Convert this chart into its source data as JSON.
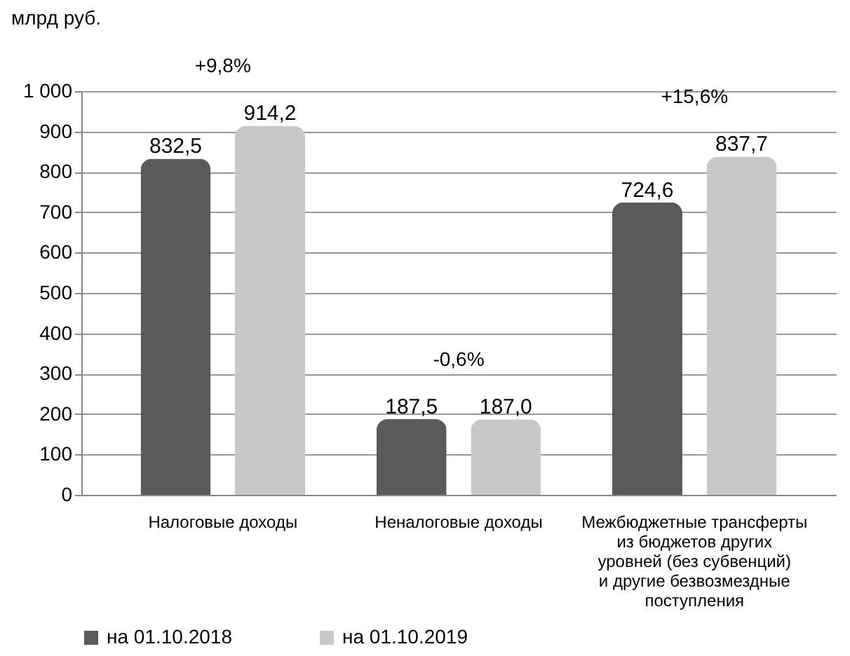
{
  "chart_data": {
    "type": "bar",
    "ylabel": "млрд руб.",
    "categories": [
      "Налоговые доходы",
      "Неналоговые доходы",
      "Межбюджетные трансферты из бюджетов других уровней (без субвенций) и другие безвозмездные поступления"
    ],
    "series": [
      {
        "name": "на 01.10.2018",
        "color": "#5a5a5a",
        "values": [
          832.5,
          187.5,
          724.6
        ],
        "value_labels": [
          "832,5",
          "187,5",
          "724,6"
        ]
      },
      {
        "name": "на 01.10.2019",
        "color": "#c8c8c8",
        "values": [
          914.2,
          187.0,
          837.7
        ],
        "value_labels": [
          "914,2",
          "187,0",
          "837,7"
        ]
      }
    ],
    "ylim": [
      0,
      1000
    ],
    "yticks": [
      0,
      100,
      200,
      300,
      400,
      500,
      600,
      700,
      800,
      900,
      {
        "value": 1000,
        "label": "1 000"
      }
    ],
    "grid": "y",
    "legend": "bottom",
    "annotations": [
      "+9,8%",
      "-0,6%",
      "+15,6%"
    ]
  }
}
